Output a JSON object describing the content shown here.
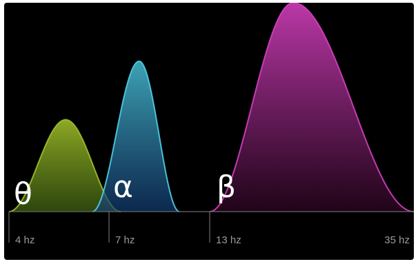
{
  "chart_data": {
    "type": "area",
    "title": "",
    "xlabel": "",
    "ylabel": "",
    "x_tick_labels": [
      "4 hz",
      "7 hz",
      "13 hz",
      "35 hz"
    ],
    "series": [
      {
        "name": "θ",
        "color_top": "#a2c02a",
        "color_bottom": "#3a5a10",
        "start_hz": 4,
        "peak_hz": 5.7,
        "end_hz": 7.7,
        "peak_value": 0.44
      },
      {
        "name": "α",
        "color_top": "#4fd0e8",
        "color_bottom": "#123a70",
        "start_hz": 6.5,
        "peak_hz": 8.8,
        "end_hz": 11.2,
        "peak_value": 0.72
      },
      {
        "name": "β",
        "color_top": "#d640c0",
        "color_bottom": "#2a0520",
        "start_hz": 13,
        "peak_hz": 22,
        "end_hz": 35,
        "peak_value": 1.0
      }
    ]
  }
}
